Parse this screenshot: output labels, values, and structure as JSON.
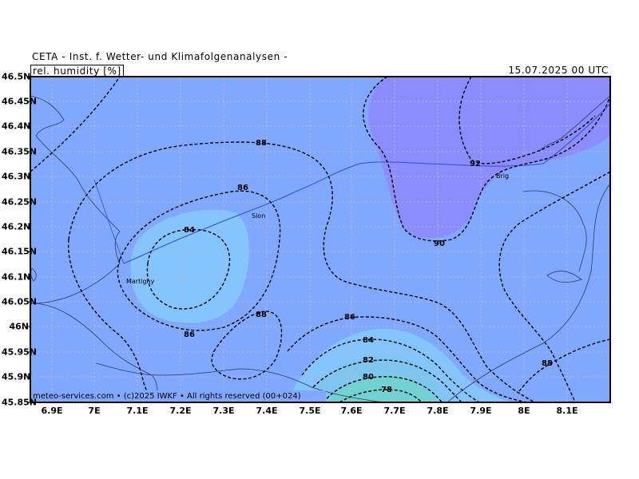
{
  "header": {
    "title": "CETA - Inst. f. Wetter- und Klimafolgenanalysen -",
    "parameter": "rel. humidity [%]",
    "datetime": "15.07.2025 00 UTC"
  },
  "footer": "meteo-services.com • (c)2025 IWKF • All rights reserved (00+024)",
  "axes": {
    "lat_labels": [
      "46.5N",
      "46.45N",
      "46.4N",
      "46.35N",
      "46.3N",
      "46.25N",
      "46.2N",
      "46.15N",
      "46.1N",
      "46.05N",
      "46N",
      "45.95N",
      "45.9N",
      "45.85N"
    ],
    "lon_labels": [
      "6.9E",
      "7E",
      "7.1E",
      "7.2E",
      "7.3E",
      "7.4E",
      "7.5E",
      "7.6E",
      "7.7E",
      "7.8E",
      "7.9E",
      "8E",
      "8.1E"
    ]
  },
  "places": {
    "sion": "Sion",
    "brig": "Brig",
    "martigny": "Martigny"
  },
  "contour_labels": {
    "c88_north": "88",
    "c86_west": "86",
    "c84_center": "84",
    "c86_lower": "86",
    "c88_south": "88",
    "c90_east": "90",
    "c92_north": "92",
    "c86_south": "86",
    "c84_south": "84",
    "c82_south": "82",
    "c80_south": "80",
    "c78_south": "78",
    "c88_se": "88"
  },
  "colors": {
    "bg_humidity_88": "#80a8ff",
    "humid_90": "#8a8cff",
    "dry_84": "#84c4ff",
    "dry_80": "#7ec6f0",
    "dry_78": "#70d2d2"
  }
}
